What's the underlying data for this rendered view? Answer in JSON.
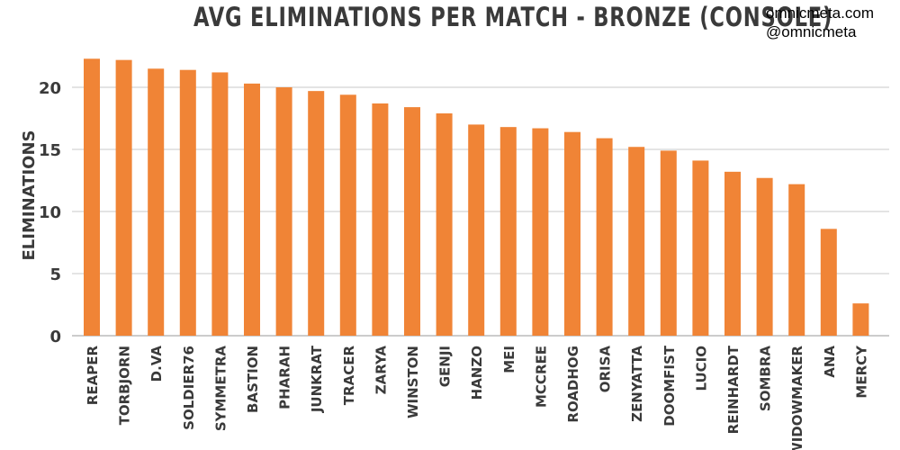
{
  "brand": {
    "site": "omnicmeta.com",
    "handle": "@omnicmeta"
  },
  "colors": {
    "bar": "#f08436",
    "grid": "#c8c8c8",
    "text": "#3a3a3a"
  },
  "chart_data": {
    "type": "bar",
    "title": "AVG ELIMINATIONS PER MATCH - BRONZE (CONSOLE)",
    "xlabel": "",
    "ylabel": "ELIMINATIONS",
    "ylim": [
      0,
      23.5
    ],
    "yticks": [
      0,
      5,
      10,
      15,
      20
    ],
    "grid": true,
    "categories": [
      "REAPER",
      "TORBJORN",
      "D.VA",
      "SOLDIER76",
      "SYMMETRA",
      "BASTION",
      "PHARAH",
      "JUNKRAT",
      "TRACER",
      "ZARYA",
      "WINSTON",
      "GENJI",
      "HANZO",
      "MEI",
      "MCCREE",
      "ROADHOG",
      "ORISA",
      "ZENYATTA",
      "DOOMFIST",
      "LUCIO",
      "REINHARDT",
      "SOMBRA",
      "WIDOWMAKER",
      "ANA",
      "MERCY"
    ],
    "values": [
      22.3,
      22.2,
      21.5,
      21.4,
      21.2,
      20.3,
      20.0,
      19.7,
      19.4,
      18.7,
      18.4,
      17.9,
      17.0,
      16.8,
      16.7,
      16.4,
      15.9,
      15.2,
      14.9,
      14.1,
      13.2,
      12.7,
      12.2,
      8.6,
      2.6
    ]
  }
}
